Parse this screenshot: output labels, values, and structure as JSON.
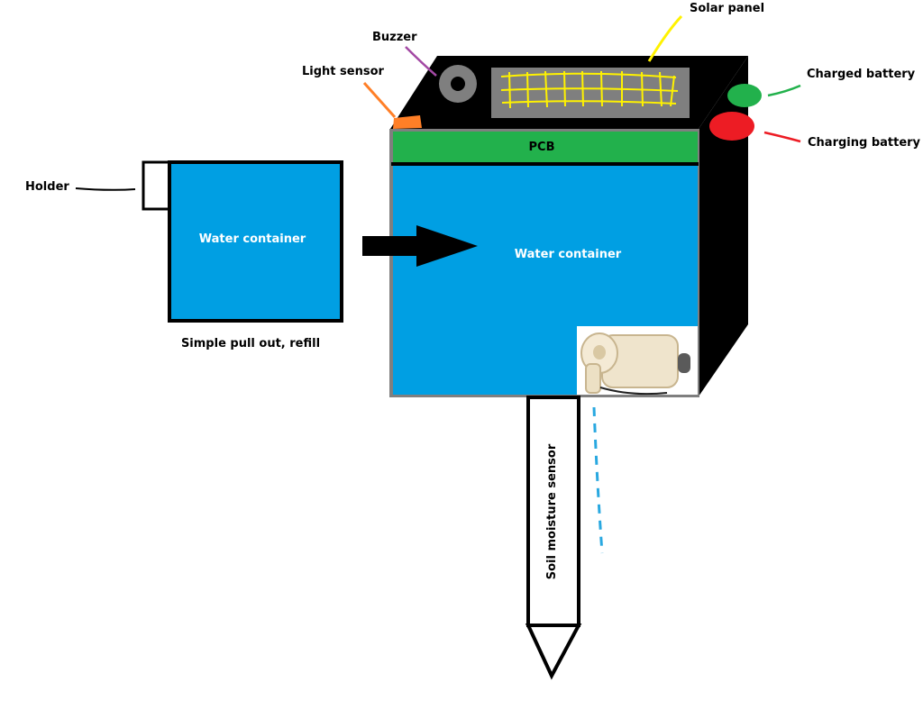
{
  "labels": {
    "solar_panel": "Solar panel",
    "buzzer": "Buzzer",
    "light_sensor": "Light sensor",
    "charged_battery": "Charged battery",
    "charging_battery": "Charging battery",
    "pcb": "PCB",
    "holder": "Holder",
    "small_container": "Water container",
    "main_container": "Water container",
    "pull_out_note": "Simple pull out, refill",
    "soil_sensor": "Soil moisture sensor"
  },
  "colors": {
    "water": "#009fe3",
    "pcb": "#22b14c",
    "case": "#000000",
    "solar": "#7f7f7f",
    "solar_grid": "#fff200",
    "buzzer": "#7f7f7f",
    "light_sensor": "#ff7f27",
    "charged_led": "#22b14c",
    "charging_led": "#ed1c24",
    "buzzer_leader": "#a349a4",
    "pump_drip": "#29a8e0"
  },
  "icons": {
    "pump": "water-pump-icon",
    "arrow": "insert-arrow-icon"
  }
}
